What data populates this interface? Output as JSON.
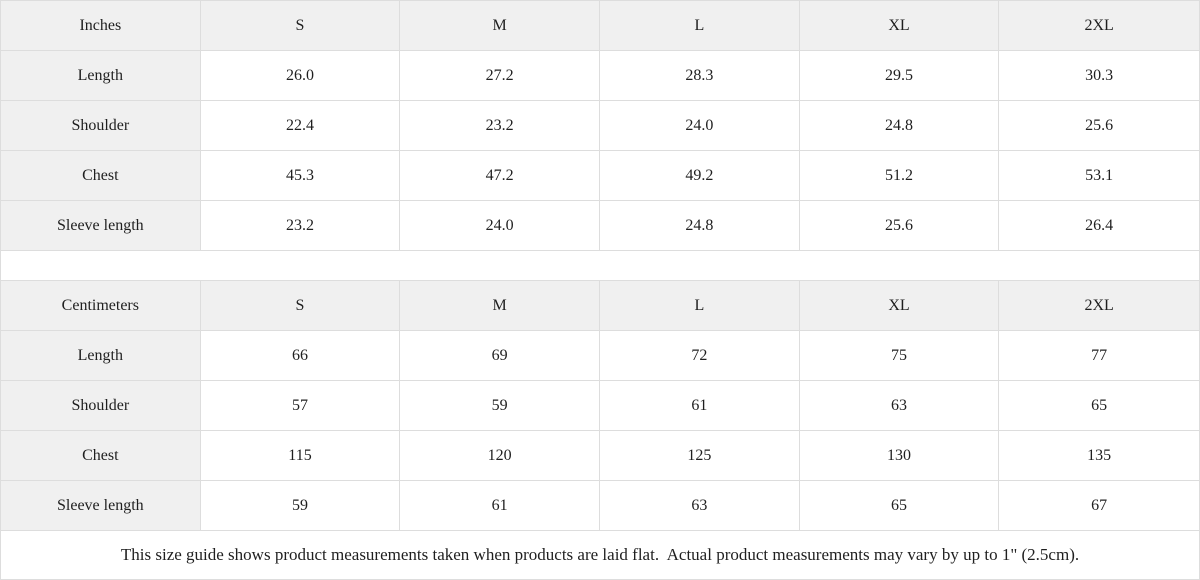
{
  "colors": {
    "border": "#dddddd",
    "header_background": "#f0f0f0",
    "text": "#1f1f1f",
    "cell_background": "#ffffff"
  },
  "chart_data": [
    {
      "type": "table",
      "columns": [
        "Inches",
        "S",
        "M",
        "L",
        "XL",
        "2XL"
      ],
      "rows": [
        [
          "Length",
          "26.0",
          "27.2",
          "28.3",
          "29.5",
          "30.3"
        ],
        [
          "Shoulder",
          "22.4",
          "23.2",
          "24.0",
          "24.8",
          "25.6"
        ],
        [
          "Chest",
          "45.3",
          "47.2",
          "49.2",
          "51.2",
          "53.1"
        ],
        [
          "Sleeve length",
          "23.2",
          "24.0",
          "24.8",
          "25.6",
          "26.4"
        ]
      ]
    },
    {
      "type": "table",
      "columns": [
        "Centimeters",
        "S",
        "M",
        "L",
        "XL",
        "2XL"
      ],
      "rows": [
        [
          "Length",
          "66",
          "69",
          "72",
          "75",
          "77"
        ],
        [
          "Shoulder",
          "57",
          "59",
          "61",
          "63",
          "65"
        ],
        [
          "Chest",
          "115",
          "120",
          "125",
          "130",
          "135"
        ],
        [
          "Sleeve length",
          "59",
          "61",
          "63",
          "65",
          "67"
        ]
      ]
    }
  ],
  "footer": {
    "note": "This size guide shows product measurements taken when products are laid flat.  Actual product measurements may vary by up to 1\" (2.5cm)."
  }
}
